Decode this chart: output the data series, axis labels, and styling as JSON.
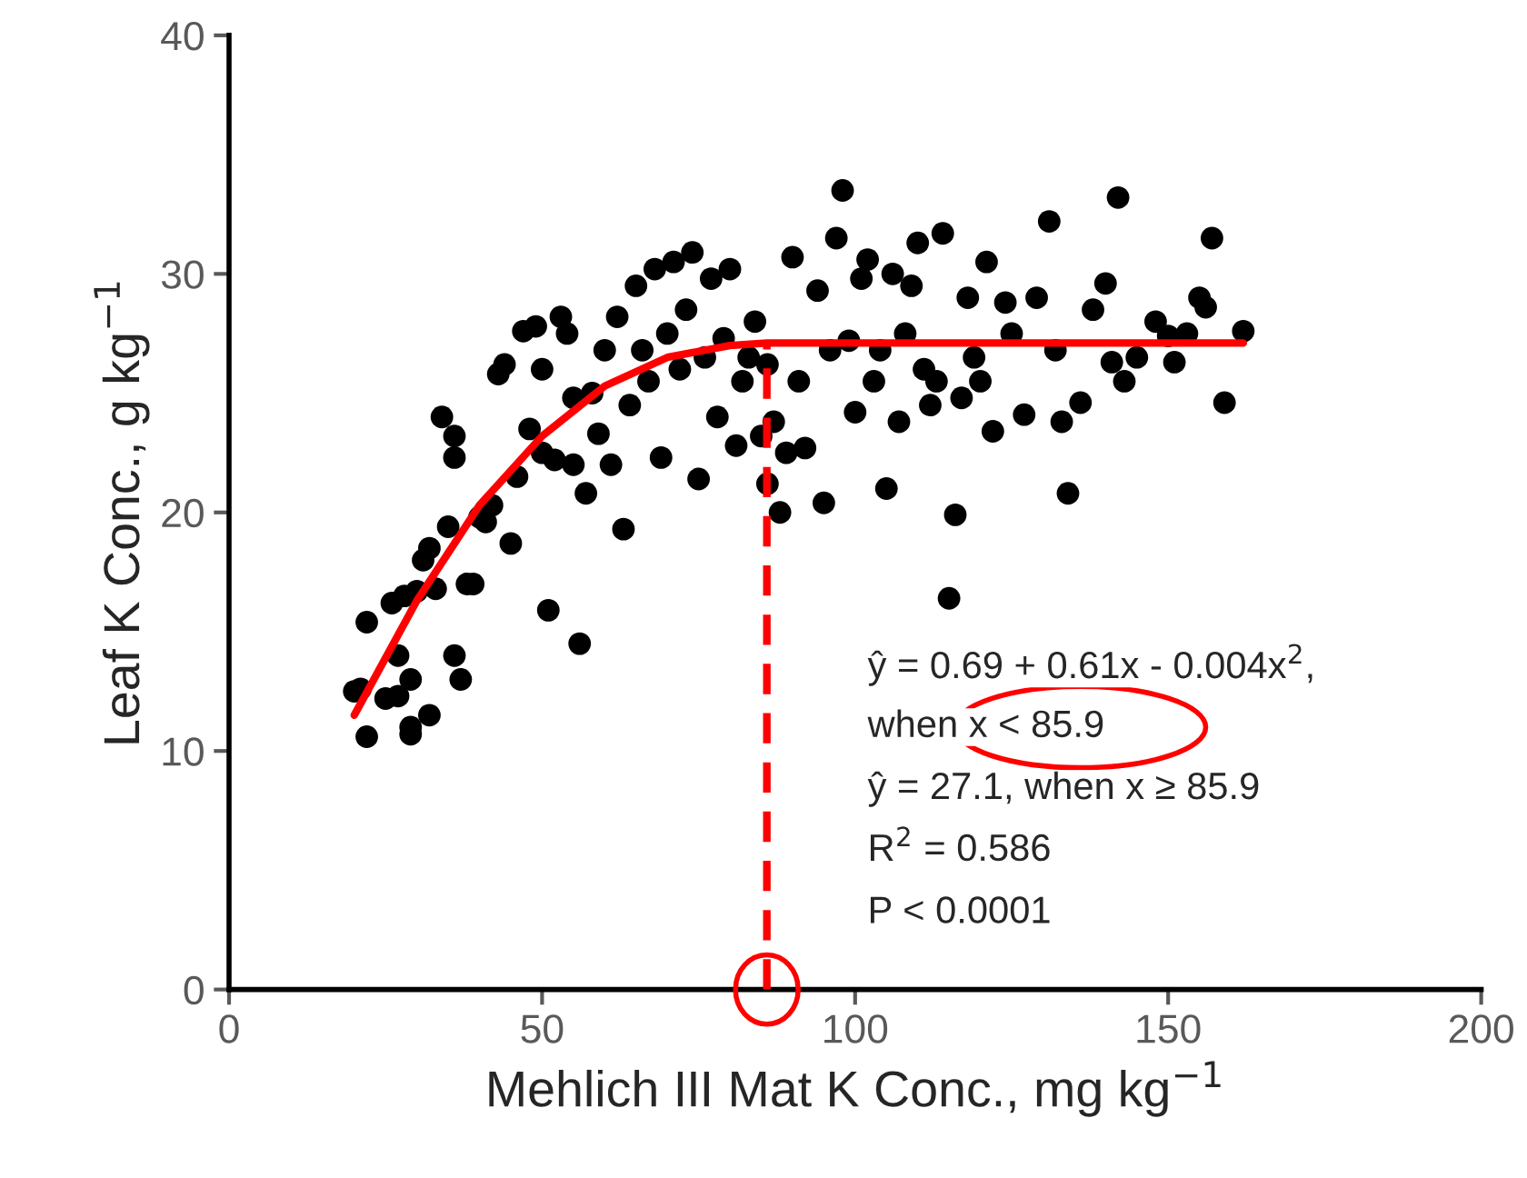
{
  "chart_data": {
    "type": "scatter",
    "xlabel": "Mehlich III Mat K Conc., mg kg$^{−1}$",
    "ylabel": "Leaf K Conc., g kg$^{−1}$",
    "xlim": [
      0,
      200
    ],
    "xticks": [
      0,
      50,
      100,
      150,
      200
    ],
    "ylim": [
      0,
      40
    ],
    "yticks": [
      0,
      10,
      20,
      30,
      40
    ],
    "grid": false,
    "legend": false,
    "series": [
      {
        "type": "scatter",
        "color": "#000000",
        "marker": "circle",
        "x": [
          20,
          21,
          22,
          22,
          25,
          26,
          27,
          27,
          28,
          29,
          29,
          29,
          30,
          31,
          32,
          32,
          33,
          34,
          35,
          36,
          36,
          36,
          37,
          38,
          39,
          40,
          41,
          42,
          43,
          44,
          45,
          46,
          47,
          48,
          49,
          50,
          50,
          51,
          52,
          53,
          54,
          55,
          55,
          56,
          57,
          58,
          59,
          60,
          61,
          62,
          63,
          64,
          65,
          66,
          67,
          68,
          69,
          70,
          71,
          72,
          73,
          74,
          75,
          76,
          77,
          78,
          79,
          80,
          81,
          82,
          83,
          84,
          85,
          86,
          86,
          87,
          88,
          89,
          90,
          91,
          92,
          94,
          95,
          96,
          97,
          98,
          99,
          100,
          101,
          102,
          103,
          104,
          105,
          106,
          107,
          108,
          109,
          110,
          111,
          112,
          113,
          114,
          115,
          116,
          117,
          118,
          119,
          120,
          121,
          122,
          124,
          125,
          127,
          129,
          131,
          132,
          133,
          134,
          136,
          138,
          140,
          141,
          142,
          143,
          145,
          148,
          150,
          151,
          153,
          155,
          156,
          157,
          159,
          162
        ],
        "values": [
          12.5,
          12.6,
          15.4,
          10.6,
          12.2,
          16.2,
          14,
          12.3,
          16.5,
          13,
          11,
          10.7,
          16.7,
          18,
          18.5,
          11.5,
          16.8,
          24,
          19.4,
          23.2,
          22.3,
          14,
          13,
          17,
          17,
          19.8,
          19.6,
          20.3,
          25.8,
          26.2,
          18.7,
          21.5,
          27.6,
          23.5,
          27.8,
          26,
          22.5,
          15.9,
          22.2,
          28.2,
          27.5,
          24.8,
          22,
          14.5,
          20.8,
          25,
          23.3,
          26.8,
          22,
          28.2,
          19.3,
          24.5,
          29.5,
          26.8,
          25.5,
          30.2,
          22.3,
          27.5,
          30.5,
          26,
          28.5,
          30.9,
          21.4,
          26.5,
          29.8,
          24,
          27.3,
          30.2,
          22.8,
          25.5,
          26.5,
          28,
          23.2,
          21.2,
          26.2,
          23.8,
          20,
          22.5,
          30.7,
          25.5,
          22.7,
          29.3,
          20.4,
          26.8,
          31.5,
          33.5,
          27.2,
          24.2,
          29.8,
          30.6,
          25.5,
          26.8,
          21,
          30,
          23.8,
          27.5,
          29.5,
          31.3,
          26,
          24.5,
          25.5,
          31.7,
          16.4,
          19.9,
          24.8,
          29,
          26.5,
          25.5,
          30.5,
          23.4,
          28.8,
          27.5,
          24.1,
          29,
          32.2,
          26.8,
          23.8,
          20.8,
          24.6,
          28.5,
          29.6,
          26.3,
          33.2,
          25.5,
          26.5,
          28,
          27.4,
          26.3,
          27.5,
          29,
          28.6,
          31.5,
          24.6,
          27.6
        ]
      },
      {
        "type": "line",
        "color": "#ff0000",
        "line_style": "solid",
        "x": [
          20,
          30,
          40,
          50,
          60,
          70,
          80,
          85.9,
          162
        ],
        "values": [
          11.5,
          16.3,
          20.3,
          23.2,
          25.3,
          26.5,
          27.0,
          27.1,
          27.1
        ]
      },
      {
        "type": "line",
        "color": "#ff0000",
        "line_style": "dashed",
        "x": [
          85.9,
          85.9
        ],
        "values": [
          0,
          27.1
        ]
      }
    ],
    "annotations": [
      "ŷ = 0.69 + 0.61x - 0.004x$^{2}$,",
      "when x < 85.9",
      "ŷ = 27.1, when x ≥ 85.9",
      "R$^{2}$ = 0.586",
      "P < 0.0001"
    ]
  }
}
